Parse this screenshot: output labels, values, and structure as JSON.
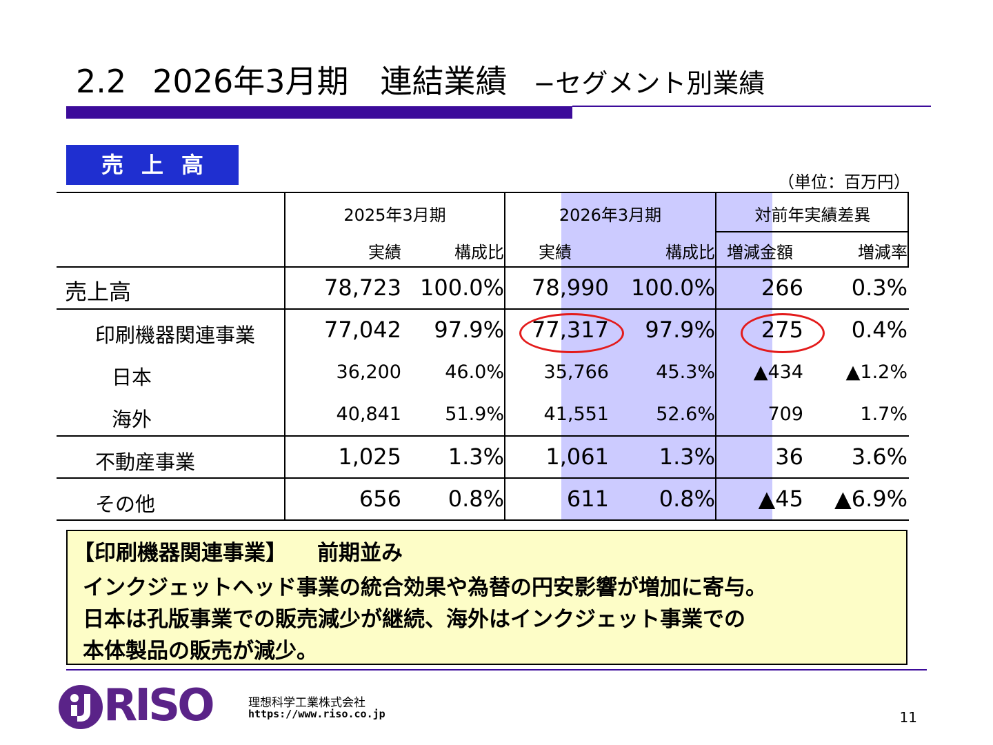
{
  "title": {
    "section_number": "2.2",
    "main": "2026年3月期　連結業績",
    "subtitle": "−セグメント別業績"
  },
  "section_label": "売上高",
  "unit_label": "（単位：百万円）",
  "table": {
    "header_groups": [
      "2025年3月期",
      "2026年3月期",
      "対前年実績差異"
    ],
    "sub_headers": [
      "実績",
      "構成比",
      "実績",
      "構成比",
      "増減金額",
      "増減率"
    ],
    "rows": [
      {
        "label": "売上高",
        "cells": [
          "78,723",
          "100.0%",
          "78,990",
          "100.0%",
          "266",
          "0.3%"
        ]
      },
      {
        "label": "印刷機器関連事業",
        "cells": [
          "77,042",
          "97.9%",
          "77,317",
          "97.9%",
          "275",
          "0.4%"
        ]
      },
      {
        "label": "日本",
        "cells": [
          "36,200",
          "46.0%",
          "35,766",
          "45.3%",
          "▲434",
          "▲1.2%"
        ]
      },
      {
        "label": "海外",
        "cells": [
          "40,841",
          "51.9%",
          "41,551",
          "52.6%",
          "709",
          "1.7%"
        ]
      },
      {
        "label": "不動産事業",
        "cells": [
          "1,025",
          "1.3%",
          "1,061",
          "1.3%",
          "36",
          "3.6%"
        ]
      },
      {
        "label": "その他",
        "cells": [
          "656",
          "0.8%",
          "611",
          "0.8%",
          "▲45",
          "▲6.9%"
        ]
      }
    ],
    "highlight_color": "#cccbff",
    "circle_color": "#e31b1b"
  },
  "comment": {
    "heading": "【印刷機器関連事業】",
    "heading_tail": "前期並み",
    "lines": [
      "インクジェットヘッド事業の統合効果や為替の円安影響が増加に寄与。",
      "日本は孔版事業での販売減少が継続、海外はインクジェット事業での",
      "本体製品の販売が減少。"
    ],
    "background": "#fdfdc7"
  },
  "footer": {
    "logo_text": "RISO",
    "company_name": "理想科学工業株式会社",
    "url": "https://www.riso.co.jp",
    "page_number": "11"
  },
  "colors": {
    "title_bar": "#3c0b9a",
    "section_label_bg": "#1f2fd0",
    "logo": "#5a2388"
  }
}
